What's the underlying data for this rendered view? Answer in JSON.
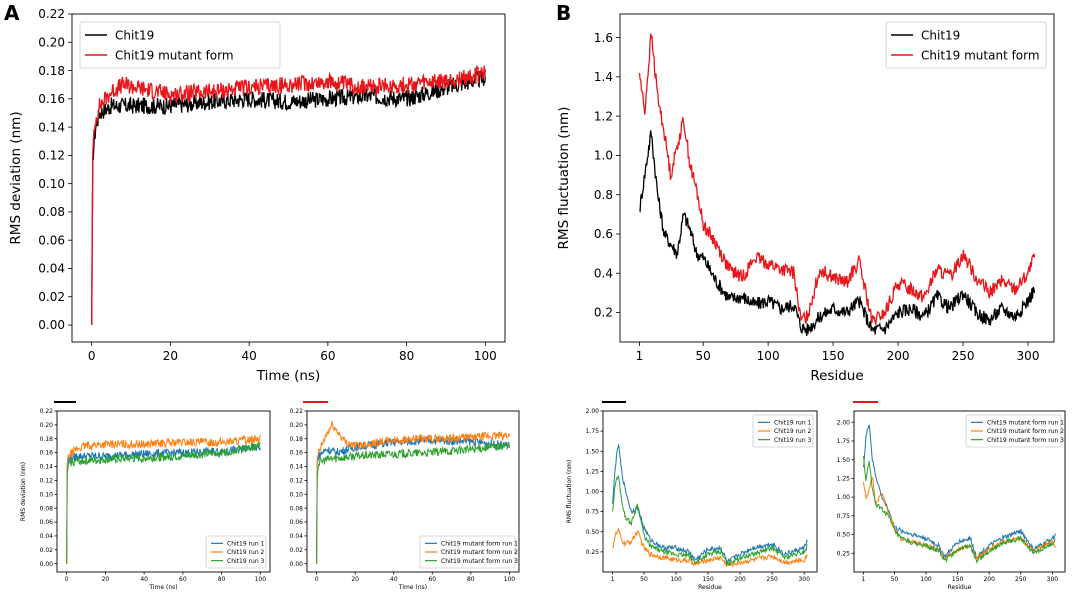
{
  "panel_letters": {
    "A": "A",
    "B": "B"
  },
  "colors": {
    "black": "#000000",
    "red": "#e8161b",
    "blue": "#1f77b4",
    "orange": "#ff7f0e",
    "green": "#2ca02c"
  },
  "chart_data": [
    {
      "id": "rmsd_main",
      "type": "line",
      "xlabel": "Time (ns)",
      "ylabel": "RMS deviation (nm)",
      "xlim": [
        -5,
        105
      ],
      "ylim": [
        -0.012,
        0.22
      ],
      "xticks": [
        0,
        20,
        40,
        60,
        80,
        100
      ],
      "yticks": [
        0.0,
        0.02,
        0.04,
        0.06,
        0.08,
        0.1,
        0.12,
        0.14,
        0.16,
        0.18,
        0.2,
        0.22
      ],
      "ytick_digits": 2,
      "legend_position": "top-left",
      "series": [
        {
          "name": "Chit19",
          "color": "#000000",
          "x": [
            0,
            0.3,
            1,
            2,
            5,
            10,
            20,
            30,
            40,
            50,
            60,
            70,
            80,
            90,
            100
          ],
          "values": [
            0.0,
            0.12,
            0.14,
            0.15,
            0.155,
            0.155,
            0.155,
            0.158,
            0.16,
            0.158,
            0.16,
            0.162,
            0.16,
            0.168,
            0.175
          ]
        },
        {
          "name": "Chit19 mutant form",
          "color": "#e8161b",
          "x": [
            0,
            0.3,
            1,
            2,
            5,
            8,
            20,
            30,
            40,
            50,
            60,
            70,
            80,
            90,
            100
          ],
          "values": [
            0.0,
            0.125,
            0.145,
            0.155,
            0.165,
            0.17,
            0.163,
            0.165,
            0.168,
            0.17,
            0.172,
            0.168,
            0.17,
            0.172,
            0.178
          ]
        }
      ]
    },
    {
      "id": "rmsf_main",
      "type": "line",
      "xlabel": "Residue",
      "ylabel": "RMS fluctuation (nm)",
      "xlim": [
        -14,
        320
      ],
      "ylim": [
        0.05,
        1.72
      ],
      "xticks": [
        1,
        50,
        100,
        150,
        200,
        250,
        300
      ],
      "yticks": [
        0.2,
        0.4,
        0.6,
        0.8,
        1.0,
        1.2,
        1.4,
        1.6
      ],
      "ytick_digits": 1,
      "legend_position": "top-right",
      "series": [
        {
          "name": "Chit19",
          "color": "#000000",
          "x": [
            1,
            5,
            10,
            15,
            20,
            25,
            30,
            35,
            40,
            45,
            50,
            55,
            60,
            70,
            80,
            90,
            100,
            110,
            120,
            125,
            130,
            140,
            150,
            160,
            170,
            180,
            190,
            200,
            210,
            220,
            230,
            240,
            250,
            260,
            270,
            280,
            290,
            300,
            305
          ],
          "values": [
            0.72,
            0.9,
            1.12,
            0.8,
            0.6,
            0.55,
            0.5,
            0.7,
            0.62,
            0.5,
            0.48,
            0.42,
            0.36,
            0.27,
            0.28,
            0.24,
            0.26,
            0.22,
            0.24,
            0.13,
            0.11,
            0.18,
            0.22,
            0.2,
            0.26,
            0.11,
            0.12,
            0.2,
            0.22,
            0.18,
            0.28,
            0.22,
            0.3,
            0.2,
            0.16,
            0.22,
            0.18,
            0.26,
            0.32
          ]
        },
        {
          "name": "Chit19 mutant form",
          "color": "#e8161b",
          "x": [
            1,
            5,
            10,
            15,
            20,
            25,
            30,
            35,
            40,
            45,
            50,
            55,
            60,
            70,
            80,
            90,
            100,
            110,
            120,
            125,
            130,
            140,
            150,
            160,
            170,
            180,
            190,
            200,
            210,
            220,
            230,
            240,
            250,
            260,
            270,
            280,
            290,
            300,
            305
          ],
          "values": [
            1.42,
            1.22,
            1.62,
            1.3,
            1.12,
            0.9,
            1.05,
            1.18,
            0.95,
            0.82,
            0.65,
            0.6,
            0.55,
            0.42,
            0.38,
            0.48,
            0.45,
            0.42,
            0.4,
            0.16,
            0.18,
            0.42,
            0.38,
            0.35,
            0.46,
            0.15,
            0.2,
            0.35,
            0.32,
            0.28,
            0.42,
            0.38,
            0.5,
            0.38,
            0.3,
            0.36,
            0.32,
            0.4,
            0.48
          ]
        }
      ]
    },
    {
      "id": "rmsd_runs_chit19",
      "type": "line",
      "xlabel": "Time (ns)",
      "ylabel": "RMS deviation (nm)",
      "xlim": [
        -5,
        105
      ],
      "ylim": [
        -0.012,
        0.22
      ],
      "xticks": [
        0,
        20,
        40,
        60,
        80,
        100
      ],
      "yticks": [
        0.0,
        0.02,
        0.04,
        0.06,
        0.08,
        0.1,
        0.12,
        0.14,
        0.16,
        0.18,
        0.2,
        0.22
      ],
      "ytick_digits": 2,
      "legend_position": "bottom-right",
      "series": [
        {
          "name": "Chit19 run 1",
          "color": "#1f77b4",
          "x": [
            0,
            0.3,
            1,
            5,
            10,
            20,
            40,
            60,
            80,
            100
          ],
          "values": [
            0.0,
            0.15,
            0.15,
            0.155,
            0.155,
            0.155,
            0.158,
            0.16,
            0.162,
            0.168
          ]
        },
        {
          "name": "Chit19 run 2",
          "color": "#ff7f0e",
          "x": [
            0,
            0.3,
            1,
            5,
            10,
            20,
            40,
            60,
            80,
            100
          ],
          "values": [
            0.0,
            0.14,
            0.155,
            0.165,
            0.17,
            0.172,
            0.172,
            0.175,
            0.175,
            0.18
          ]
        },
        {
          "name": "Chit19 run 3",
          "color": "#2ca02c",
          "x": [
            0,
            0.3,
            1,
            5,
            10,
            20,
            40,
            60,
            80,
            100
          ],
          "values": [
            0.0,
            0.13,
            0.145,
            0.148,
            0.148,
            0.15,
            0.152,
            0.155,
            0.16,
            0.17
          ]
        }
      ]
    },
    {
      "id": "rmsd_runs_mutant",
      "type": "line",
      "xlabel": "Time (ns)",
      "ylabel": "",
      "xlim": [
        -5,
        105
      ],
      "ylim": [
        -0.012,
        0.22
      ],
      "xticks": [
        0,
        20,
        40,
        60,
        80,
        100
      ],
      "yticks": [
        0.0,
        0.02,
        0.04,
        0.06,
        0.08,
        0.1,
        0.12,
        0.14,
        0.16,
        0.18,
        0.2,
        0.22
      ],
      "ytick_digits": 2,
      "legend_position": "bottom-right",
      "series": [
        {
          "name": "Chit19 mutant form run 1",
          "color": "#1f77b4",
          "x": [
            0,
            0.3,
            1,
            5,
            10,
            20,
            40,
            60,
            80,
            100
          ],
          "values": [
            0.0,
            0.15,
            0.155,
            0.165,
            0.16,
            0.168,
            0.175,
            0.178,
            0.176,
            0.17
          ]
        },
        {
          "name": "Chit19 mutant form run 2",
          "color": "#ff7f0e",
          "x": [
            0,
            0.3,
            1,
            5,
            8,
            15,
            20,
            40,
            60,
            80,
            100
          ],
          "values": [
            0.0,
            0.15,
            0.16,
            0.185,
            0.2,
            0.175,
            0.17,
            0.178,
            0.18,
            0.182,
            0.185
          ]
        },
        {
          "name": "Chit19 mutant form run 3",
          "color": "#2ca02c",
          "x": [
            0,
            0.3,
            1,
            5,
            10,
            20,
            40,
            60,
            80,
            100
          ],
          "values": [
            0.0,
            0.13,
            0.145,
            0.15,
            0.152,
            0.155,
            0.158,
            0.16,
            0.165,
            0.17
          ]
        }
      ]
    },
    {
      "id": "rmsf_runs_chit19",
      "type": "line",
      "xlabel": "Residue",
      "ylabel": "RMS fluctuation (nm)",
      "xlim": [
        -14,
        320
      ],
      "ylim": [
        0.0,
        2.0
      ],
      "xticks": [
        1,
        50,
        100,
        150,
        200,
        250,
        300
      ],
      "yticks": [
        0.25,
        0.5,
        0.75,
        1.0,
        1.25,
        1.5,
        1.75,
        2.0
      ],
      "ytick_digits": 2,
      "legend_position": "top-right",
      "series": [
        {
          "name": "Chit19 run 1",
          "color": "#1f77b4",
          "x": [
            1,
            5,
            10,
            15,
            20,
            30,
            40,
            50,
            60,
            80,
            100,
            120,
            130,
            150,
            170,
            180,
            200,
            220,
            250,
            270,
            300,
            305
          ],
          "values": [
            0.85,
            1.3,
            1.6,
            1.25,
            1.05,
            0.75,
            0.8,
            0.55,
            0.4,
            0.3,
            0.3,
            0.25,
            0.15,
            0.28,
            0.3,
            0.12,
            0.22,
            0.3,
            0.35,
            0.22,
            0.3,
            0.4
          ]
        },
        {
          "name": "Chit19 run 2",
          "color": "#ff7f0e",
          "x": [
            1,
            5,
            10,
            15,
            20,
            30,
            40,
            50,
            60,
            80,
            100,
            120,
            130,
            150,
            170,
            180,
            200,
            220,
            250,
            270,
            300,
            305
          ],
          "values": [
            0.3,
            0.45,
            0.52,
            0.4,
            0.35,
            0.38,
            0.5,
            0.3,
            0.22,
            0.18,
            0.15,
            0.14,
            0.1,
            0.15,
            0.18,
            0.08,
            0.12,
            0.15,
            0.2,
            0.12,
            0.15,
            0.22
          ]
        },
        {
          "name": "Chit19 run 3",
          "color": "#2ca02c",
          "x": [
            1,
            5,
            10,
            15,
            20,
            30,
            40,
            50,
            60,
            80,
            100,
            120,
            130,
            150,
            170,
            180,
            200,
            220,
            250,
            270,
            300,
            305
          ],
          "values": [
            0.75,
            1.1,
            1.2,
            0.9,
            0.7,
            0.6,
            0.85,
            0.45,
            0.32,
            0.25,
            0.22,
            0.2,
            0.12,
            0.22,
            0.25,
            0.1,
            0.18,
            0.22,
            0.3,
            0.18,
            0.25,
            0.32
          ]
        }
      ]
    },
    {
      "id": "rmsf_runs_mutant",
      "type": "line",
      "xlabel": "Residue",
      "ylabel": "",
      "xlim": [
        -14,
        320
      ],
      "ylim": [
        0.0,
        2.15
      ],
      "xticks": [
        1,
        50,
        100,
        150,
        200,
        250,
        300
      ],
      "yticks": [
        0.25,
        0.5,
        0.75,
        1.0,
        1.25,
        1.5,
        1.75,
        2.0
      ],
      "ytick_digits": 2,
      "legend_position": "top-right",
      "series": [
        {
          "name": "Chit19 mutant form run 1",
          "color": "#1f77b4",
          "x": [
            1,
            5,
            10,
            15,
            20,
            30,
            40,
            50,
            60,
            80,
            100,
            120,
            130,
            150,
            170,
            180,
            200,
            220,
            250,
            270,
            300,
            305
          ],
          "values": [
            1.4,
            1.8,
            2.0,
            1.5,
            1.3,
            1.0,
            0.85,
            0.6,
            0.55,
            0.5,
            0.45,
            0.35,
            0.2,
            0.4,
            0.45,
            0.2,
            0.35,
            0.45,
            0.55,
            0.3,
            0.45,
            0.5
          ]
        },
        {
          "name": "Chit19 mutant form run 2",
          "color": "#ff7f0e",
          "x": [
            1,
            5,
            10,
            15,
            20,
            30,
            40,
            50,
            60,
            80,
            100,
            120,
            130,
            150,
            170,
            180,
            200,
            220,
            250,
            270,
            300,
            305
          ],
          "values": [
            1.2,
            1.0,
            1.1,
            1.3,
            0.9,
            1.05,
            0.8,
            0.6,
            0.45,
            0.4,
            0.35,
            0.3,
            0.18,
            0.3,
            0.35,
            0.18,
            0.3,
            0.4,
            0.45,
            0.28,
            0.4,
            0.35
          ]
        },
        {
          "name": "Chit19 mutant form run 3",
          "color": "#2ca02c",
          "x": [
            1,
            5,
            10,
            15,
            20,
            30,
            40,
            50,
            60,
            80,
            100,
            120,
            130,
            150,
            170,
            180,
            200,
            220,
            250,
            270,
            300,
            305
          ],
          "values": [
            1.55,
            1.2,
            1.5,
            1.1,
            0.9,
            0.85,
            0.75,
            0.55,
            0.45,
            0.38,
            0.35,
            0.28,
            0.15,
            0.3,
            0.35,
            0.15,
            0.28,
            0.38,
            0.45,
            0.25,
            0.38,
            0.45
          ]
        }
      ]
    }
  ]
}
